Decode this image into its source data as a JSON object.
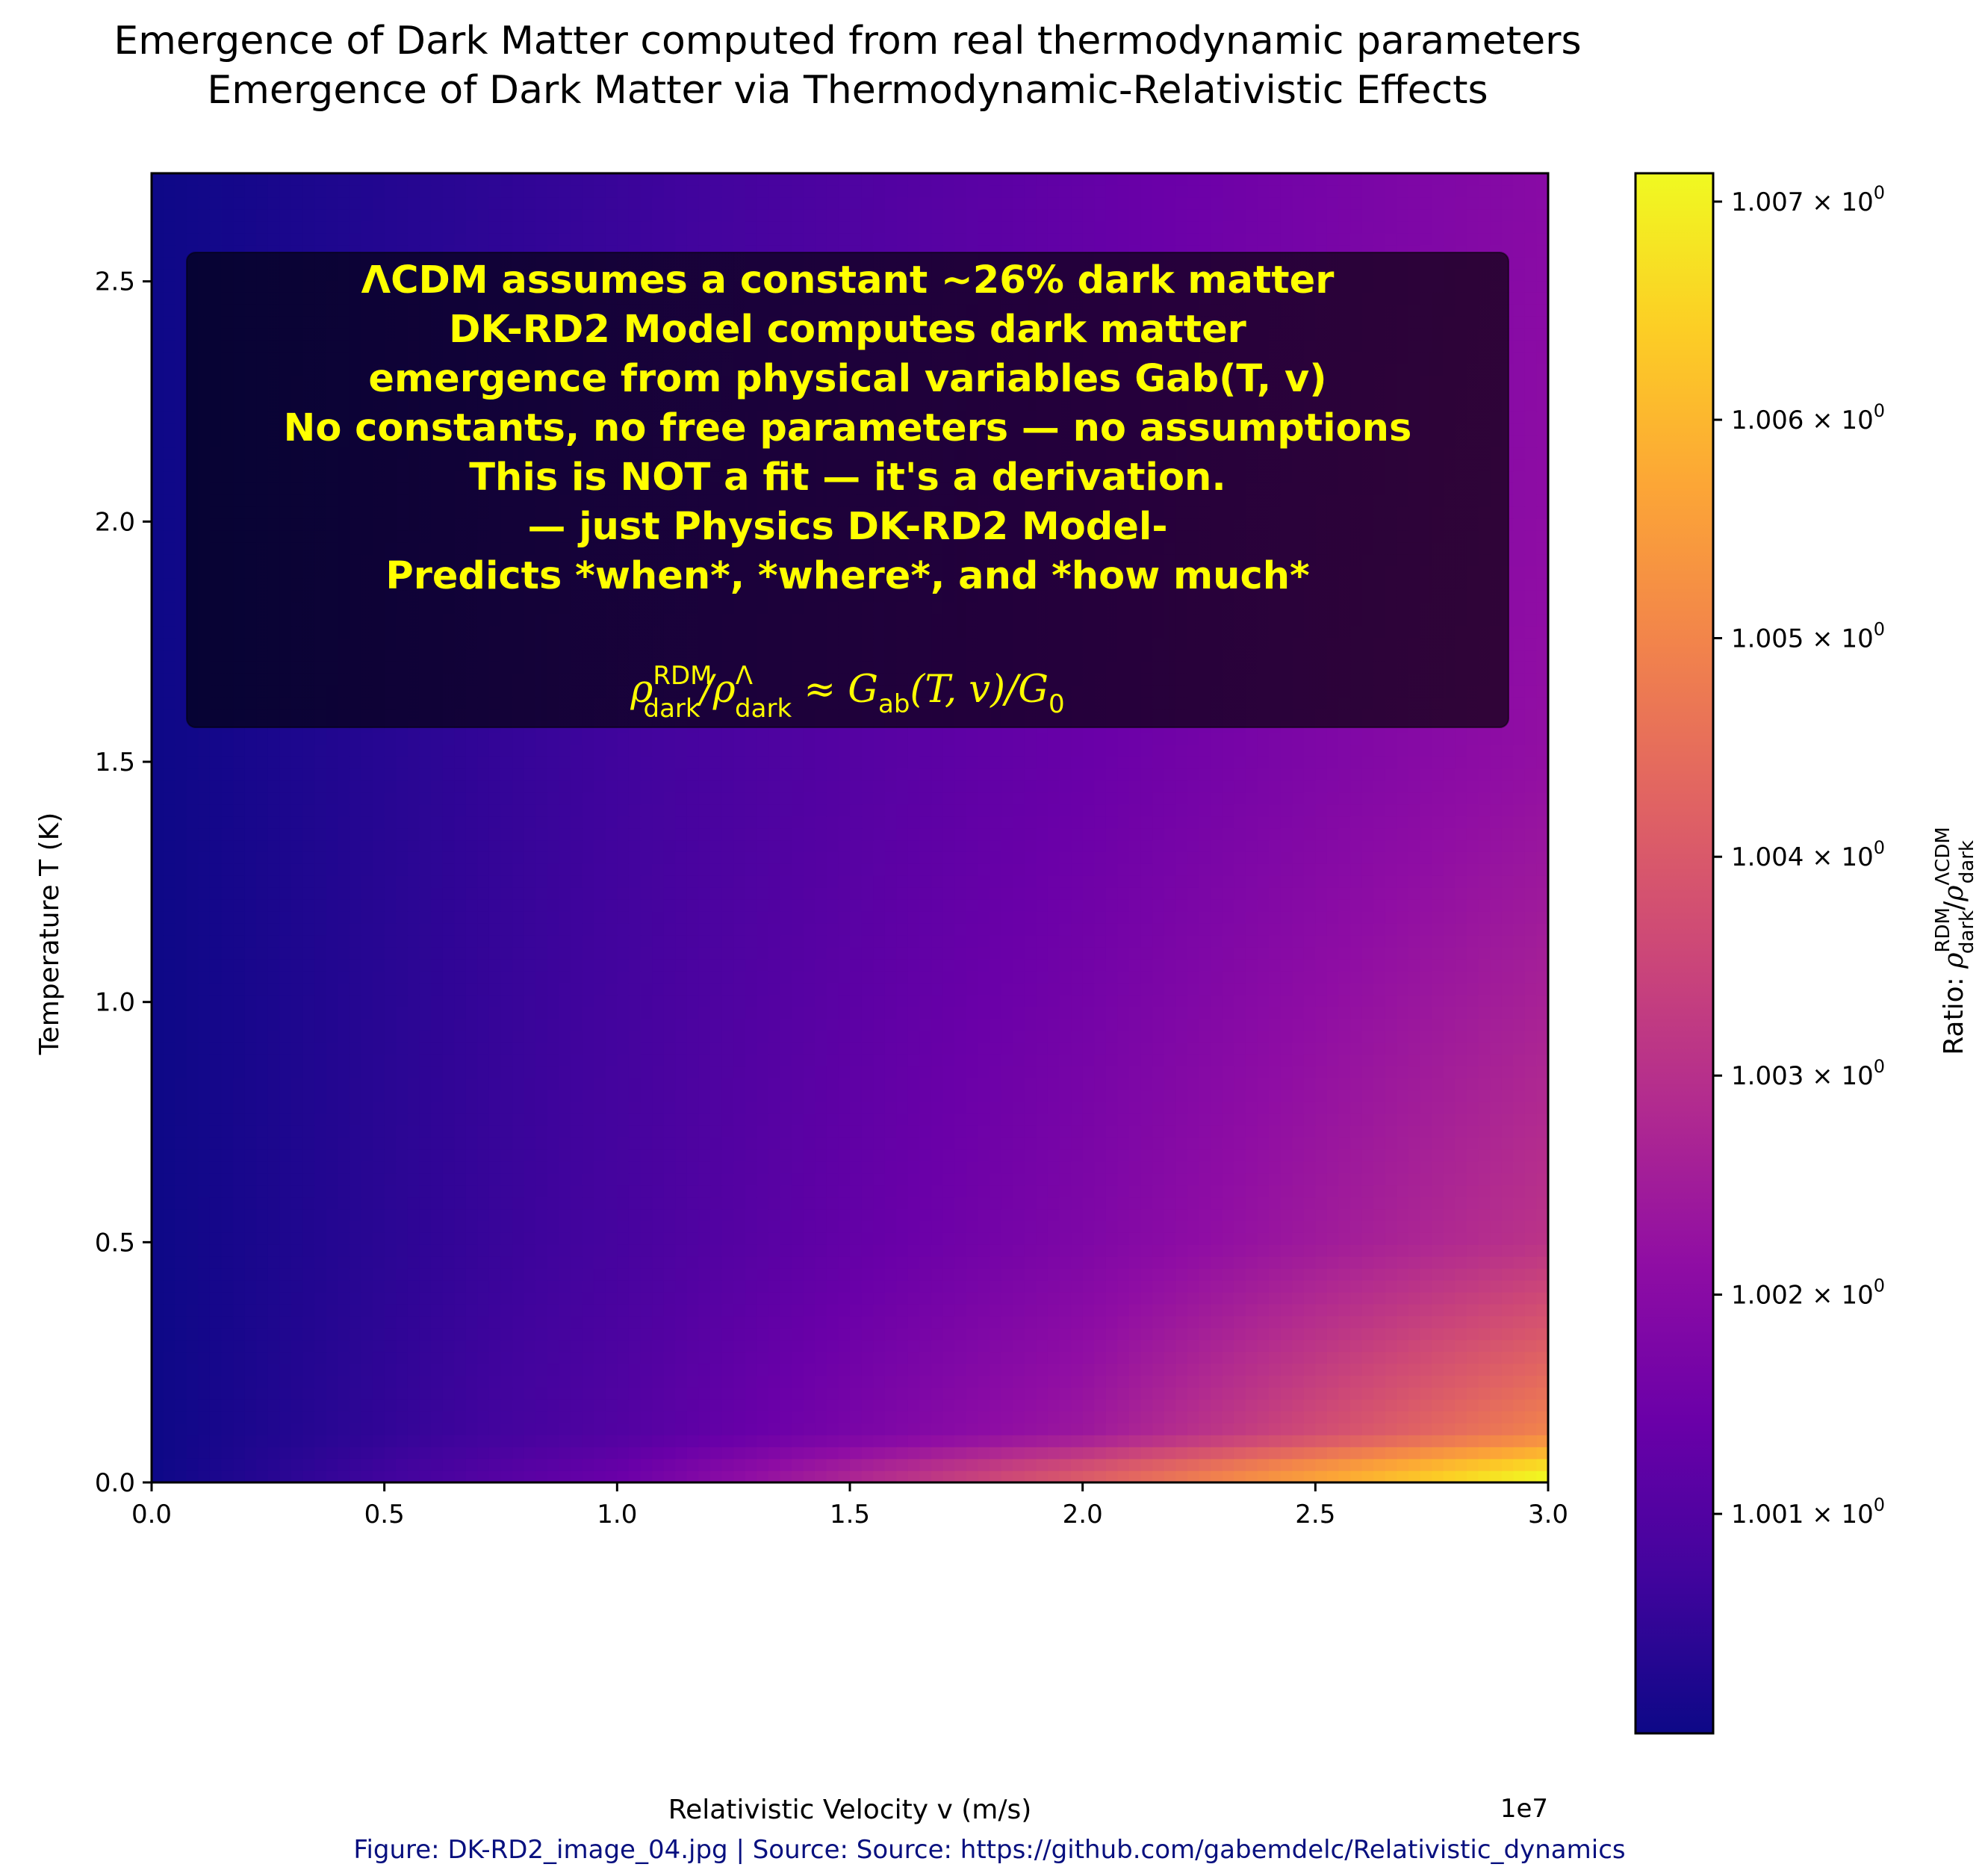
{
  "chart_data": {
    "type": "heatmap",
    "title": "Emergence of Dark Matter computed from real thermodynamic parameters",
    "subtitle": "Emergence of Dark Matter via Thermodynamic-Relativistic Effects",
    "xlabel": "Relativistic Velocity v (m/s)",
    "x_offset_label": "1e7",
    "ylabel": "Temperature T (K)",
    "xlim": [
      0,
      30000000
    ],
    "ylim": [
      0,
      2.725
    ],
    "x_ticks": [
      0,
      5000000,
      10000000,
      15000000,
      20000000,
      25000000,
      30000000
    ],
    "x_tick_labels": [
      "0.0",
      "0.5",
      "1.0",
      "1.5",
      "2.0",
      "2.5",
      "3.0"
    ],
    "y_ticks": [
      0,
      0.5,
      1.0,
      1.5,
      2.0,
      2.5
    ],
    "y_tick_labels": [
      "0.0",
      "0.5",
      "1.0",
      "1.5",
      "2.0",
      "2.5"
    ],
    "colormap": "plasma",
    "colorbar": {
      "label_prefix": "Ratio: ",
      "scale": "log",
      "vmin": 1.0,
      "vmax": 1.00713,
      "ticks": [
        1.001,
        1.002,
        1.003,
        1.004,
        1.005,
        1.006,
        1.007
      ],
      "tick_labels": [
        "1.001",
        "1.002",
        "1.003",
        "1.004",
        "1.005",
        "1.006",
        "1.007"
      ],
      "tick_suffix": "× 10",
      "tick_exponent": "0"
    },
    "grid": false,
    "ratio_samples": {
      "note_axes": "rows are T (K), columns are v (m/s)",
      "v": [
        0,
        10000000,
        20000000,
        30000000
      ],
      "rows": [
        {
          "T": 2.7,
          "ratio": [
            1.0,
            1.0006,
            1.0013,
            1.002
          ]
        },
        {
          "T": 1.5,
          "ratio": [
            1.0,
            1.0007,
            1.0014,
            1.0022
          ]
        },
        {
          "T": 0.5,
          "ratio": [
            1.0,
            1.0008,
            1.0018,
            1.0031
          ]
        },
        {
          "T": 0.1,
          "ratio": [
            1.0,
            1.001,
            1.0024,
            1.005
          ]
        },
        {
          "T": 0.02,
          "ratio": [
            1.0,
            1.0014,
            1.004,
            1.0071
          ]
        }
      ]
    }
  },
  "annotation": {
    "lines": [
      "ΛCDM assumes a constant ~26% dark matter",
      "DK-RD2 Model computes dark matter",
      "emergence from physical variables Gab(T, v)",
      "No constants, no free parameters — no assumptions",
      "This is NOT a fit — it's a derivation.",
      "— just Physics DK-RD2 Model-",
      "Predicts *when*, *where*, and *how much*"
    ],
    "equation": "ρdarkRDM/ρdarkΛ ≈ Gab(T,v)/G0"
  },
  "caption": "Figure: DK-RD2_image_04.jpg  | Source:  Source: https://github.com/gabemdelc/Relativistic_dynamics",
  "colors": {
    "annotation_text": "#ffff00",
    "annotation_box": "#000000",
    "caption_text": "#08107f"
  }
}
